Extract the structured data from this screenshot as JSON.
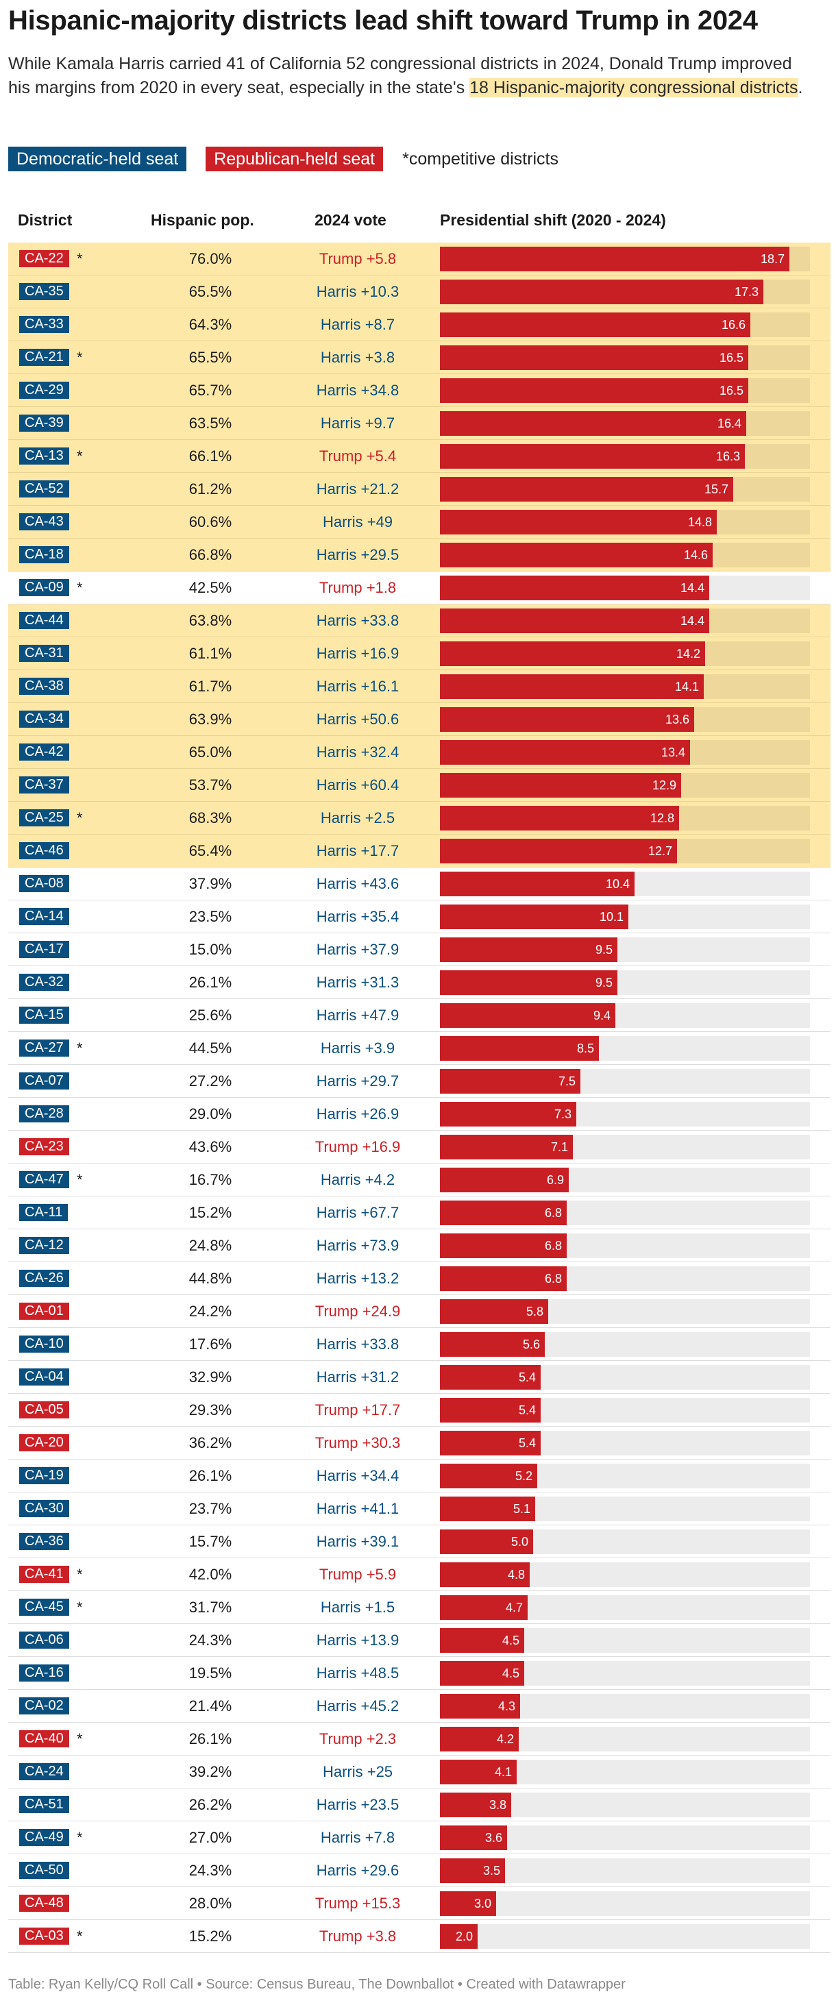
{
  "header": {
    "title": "Hispanic-majority districts lead shift toward Trump in 2024",
    "subtitle_before": "While Kamala Harris carried 41 of California 52 congressional districts in 2024, Donald Trump improved his margins from 2020 in every seat, especially in the state's ",
    "subtitle_highlight": "18 Hispanic-majority congressional districts",
    "subtitle_after": "."
  },
  "legend": {
    "dem_label": "Democratic-held seat",
    "rep_label": "Republican-held seat",
    "note": "*competitive districts"
  },
  "columns": {
    "district": "District",
    "hispanic": "Hispanic pop.",
    "vote": "2024 vote",
    "shift": "Presidential shift (2020 - 2024)"
  },
  "colors": {
    "dem": "#0b4f7f",
    "rep": "#cc2027",
    "bar": "#c81f25",
    "highlight": "#fde8a8",
    "track": "#ececec"
  },
  "chart_data": {
    "type": "table",
    "title": "Hispanic-majority districts lead shift toward Trump in 2024",
    "xlim": [
      0,
      19.8
    ],
    "rows": [
      {
        "district": "CA-22",
        "party": "rep",
        "competitive": true,
        "hispanic": "76.0%",
        "vote": "Trump +5.8",
        "vote_side": "rep",
        "shift": 18.7,
        "hisp_majority": true
      },
      {
        "district": "CA-35",
        "party": "dem",
        "competitive": false,
        "hispanic": "65.5%",
        "vote": "Harris +10.3",
        "vote_side": "dem",
        "shift": 17.3,
        "hisp_majority": true
      },
      {
        "district": "CA-33",
        "party": "dem",
        "competitive": false,
        "hispanic": "64.3%",
        "vote": "Harris +8.7",
        "vote_side": "dem",
        "shift": 16.6,
        "hisp_majority": true
      },
      {
        "district": "CA-21",
        "party": "dem",
        "competitive": true,
        "hispanic": "65.5%",
        "vote": "Harris +3.8",
        "vote_side": "dem",
        "shift": 16.5,
        "hisp_majority": true
      },
      {
        "district": "CA-29",
        "party": "dem",
        "competitive": false,
        "hispanic": "65.7%",
        "vote": "Harris +34.8",
        "vote_side": "dem",
        "shift": 16.5,
        "hisp_majority": true
      },
      {
        "district": "CA-39",
        "party": "dem",
        "competitive": false,
        "hispanic": "63.5%",
        "vote": "Harris +9.7",
        "vote_side": "dem",
        "shift": 16.4,
        "hisp_majority": true
      },
      {
        "district": "CA-13",
        "party": "dem",
        "competitive": true,
        "hispanic": "66.1%",
        "vote": "Trump +5.4",
        "vote_side": "rep",
        "shift": 16.3,
        "hisp_majority": true
      },
      {
        "district": "CA-52",
        "party": "dem",
        "competitive": false,
        "hispanic": "61.2%",
        "vote": "Harris +21.2",
        "vote_side": "dem",
        "shift": 15.7,
        "hisp_majority": true
      },
      {
        "district": "CA-43",
        "party": "dem",
        "competitive": false,
        "hispanic": "60.6%",
        "vote": "Harris +49",
        "vote_side": "dem",
        "shift": 14.8,
        "hisp_majority": true
      },
      {
        "district": "CA-18",
        "party": "dem",
        "competitive": false,
        "hispanic": "66.8%",
        "vote": "Harris +29.5",
        "vote_side": "dem",
        "shift": 14.6,
        "hisp_majority": true
      },
      {
        "district": "CA-09",
        "party": "dem",
        "competitive": true,
        "hispanic": "42.5%",
        "vote": "Trump +1.8",
        "vote_side": "rep",
        "shift": 14.4,
        "hisp_majority": false
      },
      {
        "district": "CA-44",
        "party": "dem",
        "competitive": false,
        "hispanic": "63.8%",
        "vote": "Harris +33.8",
        "vote_side": "dem",
        "shift": 14.4,
        "hisp_majority": true
      },
      {
        "district": "CA-31",
        "party": "dem",
        "competitive": false,
        "hispanic": "61.1%",
        "vote": "Harris +16.9",
        "vote_side": "dem",
        "shift": 14.2,
        "hisp_majority": true
      },
      {
        "district": "CA-38",
        "party": "dem",
        "competitive": false,
        "hispanic": "61.7%",
        "vote": "Harris +16.1",
        "vote_side": "dem",
        "shift": 14.1,
        "hisp_majority": true
      },
      {
        "district": "CA-34",
        "party": "dem",
        "competitive": false,
        "hispanic": "63.9%",
        "vote": "Harris +50.6",
        "vote_side": "dem",
        "shift": 13.6,
        "hisp_majority": true
      },
      {
        "district": "CA-42",
        "party": "dem",
        "competitive": false,
        "hispanic": "65.0%",
        "vote": "Harris +32.4",
        "vote_side": "dem",
        "shift": 13.4,
        "hisp_majority": true
      },
      {
        "district": "CA-37",
        "party": "dem",
        "competitive": false,
        "hispanic": "53.7%",
        "vote": "Harris +60.4",
        "vote_side": "dem",
        "shift": 12.9,
        "hisp_majority": true
      },
      {
        "district": "CA-25",
        "party": "dem",
        "competitive": true,
        "hispanic": "68.3%",
        "vote": "Harris +2.5",
        "vote_side": "dem",
        "shift": 12.8,
        "hisp_majority": true
      },
      {
        "district": "CA-46",
        "party": "dem",
        "competitive": false,
        "hispanic": "65.4%",
        "vote": "Harris +17.7",
        "vote_side": "dem",
        "shift": 12.7,
        "hisp_majority": true
      },
      {
        "district": "CA-08",
        "party": "dem",
        "competitive": false,
        "hispanic": "37.9%",
        "vote": "Harris +43.6",
        "vote_side": "dem",
        "shift": 10.4,
        "hisp_majority": false
      },
      {
        "district": "CA-14",
        "party": "dem",
        "competitive": false,
        "hispanic": "23.5%",
        "vote": "Harris +35.4",
        "vote_side": "dem",
        "shift": 10.1,
        "hisp_majority": false
      },
      {
        "district": "CA-17",
        "party": "dem",
        "competitive": false,
        "hispanic": "15.0%",
        "vote": "Harris +37.9",
        "vote_side": "dem",
        "shift": 9.5,
        "hisp_majority": false
      },
      {
        "district": "CA-32",
        "party": "dem",
        "competitive": false,
        "hispanic": "26.1%",
        "vote": "Harris +31.3",
        "vote_side": "dem",
        "shift": 9.5,
        "hisp_majority": false
      },
      {
        "district": "CA-15",
        "party": "dem",
        "competitive": false,
        "hispanic": "25.6%",
        "vote": "Harris +47.9",
        "vote_side": "dem",
        "shift": 9.4,
        "hisp_majority": false
      },
      {
        "district": "CA-27",
        "party": "dem",
        "competitive": true,
        "hispanic": "44.5%",
        "vote": "Harris +3.9",
        "vote_side": "dem",
        "shift": 8.5,
        "hisp_majority": false
      },
      {
        "district": "CA-07",
        "party": "dem",
        "competitive": false,
        "hispanic": "27.2%",
        "vote": "Harris +29.7",
        "vote_side": "dem",
        "shift": 7.5,
        "hisp_majority": false
      },
      {
        "district": "CA-28",
        "party": "dem",
        "competitive": false,
        "hispanic": "29.0%",
        "vote": "Harris +26.9",
        "vote_side": "dem",
        "shift": 7.3,
        "hisp_majority": false
      },
      {
        "district": "CA-23",
        "party": "rep",
        "competitive": false,
        "hispanic": "43.6%",
        "vote": "Trump +16.9",
        "vote_side": "rep",
        "shift": 7.1,
        "hisp_majority": false
      },
      {
        "district": "CA-47",
        "party": "dem",
        "competitive": true,
        "hispanic": "16.7%",
        "vote": "Harris +4.2",
        "vote_side": "dem",
        "shift": 6.9,
        "hisp_majority": false
      },
      {
        "district": "CA-11",
        "party": "dem",
        "competitive": false,
        "hispanic": "15.2%",
        "vote": "Harris +67.7",
        "vote_side": "dem",
        "shift": 6.8,
        "hisp_majority": false
      },
      {
        "district": "CA-12",
        "party": "dem",
        "competitive": false,
        "hispanic": "24.8%",
        "vote": "Harris +73.9",
        "vote_side": "dem",
        "shift": 6.8,
        "hisp_majority": false
      },
      {
        "district": "CA-26",
        "party": "dem",
        "competitive": false,
        "hispanic": "44.8%",
        "vote": "Harris +13.2",
        "vote_side": "dem",
        "shift": 6.8,
        "hisp_majority": false
      },
      {
        "district": "CA-01",
        "party": "rep",
        "competitive": false,
        "hispanic": "24.2%",
        "vote": "Trump +24.9",
        "vote_side": "rep",
        "shift": 5.8,
        "hisp_majority": false
      },
      {
        "district": "CA-10",
        "party": "dem",
        "competitive": false,
        "hispanic": "17.6%",
        "vote": "Harris +33.8",
        "vote_side": "dem",
        "shift": 5.6,
        "hisp_majority": false
      },
      {
        "district": "CA-04",
        "party": "dem",
        "competitive": false,
        "hispanic": "32.9%",
        "vote": "Harris +31.2",
        "vote_side": "dem",
        "shift": 5.4,
        "hisp_majority": false
      },
      {
        "district": "CA-05",
        "party": "rep",
        "competitive": false,
        "hispanic": "29.3%",
        "vote": "Trump +17.7",
        "vote_side": "rep",
        "shift": 5.4,
        "hisp_majority": false
      },
      {
        "district": "CA-20",
        "party": "rep",
        "competitive": false,
        "hispanic": "36.2%",
        "vote": "Trump +30.3",
        "vote_side": "rep",
        "shift": 5.4,
        "hisp_majority": false
      },
      {
        "district": "CA-19",
        "party": "dem",
        "competitive": false,
        "hispanic": "26.1%",
        "vote": "Harris +34.4",
        "vote_side": "dem",
        "shift": 5.2,
        "hisp_majority": false
      },
      {
        "district": "CA-30",
        "party": "dem",
        "competitive": false,
        "hispanic": "23.7%",
        "vote": "Harris +41.1",
        "vote_side": "dem",
        "shift": 5.1,
        "hisp_majority": false
      },
      {
        "district": "CA-36",
        "party": "dem",
        "competitive": false,
        "hispanic": "15.7%",
        "vote": "Harris +39.1",
        "vote_side": "dem",
        "shift": 5.0,
        "hisp_majority": false
      },
      {
        "district": "CA-41",
        "party": "rep",
        "competitive": true,
        "hispanic": "42.0%",
        "vote": "Trump +5.9",
        "vote_side": "rep",
        "shift": 4.8,
        "hisp_majority": false
      },
      {
        "district": "CA-45",
        "party": "dem",
        "competitive": true,
        "hispanic": "31.7%",
        "vote": "Harris +1.5",
        "vote_side": "dem",
        "shift": 4.7,
        "hisp_majority": false
      },
      {
        "district": "CA-06",
        "party": "dem",
        "competitive": false,
        "hispanic": "24.3%",
        "vote": "Harris +13.9",
        "vote_side": "dem",
        "shift": 4.5,
        "hisp_majority": false
      },
      {
        "district": "CA-16",
        "party": "dem",
        "competitive": false,
        "hispanic": "19.5%",
        "vote": "Harris +48.5",
        "vote_side": "dem",
        "shift": 4.5,
        "hisp_majority": false
      },
      {
        "district": "CA-02",
        "party": "dem",
        "competitive": false,
        "hispanic": "21.4%",
        "vote": "Harris +45.2",
        "vote_side": "dem",
        "shift": 4.3,
        "hisp_majority": false
      },
      {
        "district": "CA-40",
        "party": "rep",
        "competitive": true,
        "hispanic": "26.1%",
        "vote": "Trump +2.3",
        "vote_side": "rep",
        "shift": 4.2,
        "hisp_majority": false
      },
      {
        "district": "CA-24",
        "party": "dem",
        "competitive": false,
        "hispanic": "39.2%",
        "vote": "Harris +25",
        "vote_side": "dem",
        "shift": 4.1,
        "hisp_majority": false
      },
      {
        "district": "CA-51",
        "party": "dem",
        "competitive": false,
        "hispanic": "26.2%",
        "vote": "Harris +23.5",
        "vote_side": "dem",
        "shift": 3.8,
        "hisp_majority": false
      },
      {
        "district": "CA-49",
        "party": "dem",
        "competitive": true,
        "hispanic": "27.0%",
        "vote": "Harris +7.8",
        "vote_side": "dem",
        "shift": 3.6,
        "hisp_majority": false
      },
      {
        "district": "CA-50",
        "party": "dem",
        "competitive": false,
        "hispanic": "24.3%",
        "vote": "Harris +29.6",
        "vote_side": "dem",
        "shift": 3.5,
        "hisp_majority": false
      },
      {
        "district": "CA-48",
        "party": "rep",
        "competitive": false,
        "hispanic": "28.0%",
        "vote": "Trump +15.3",
        "vote_side": "rep",
        "shift": 3.0,
        "hisp_majority": false
      },
      {
        "district": "CA-03",
        "party": "rep",
        "competitive": true,
        "hispanic": "15.2%",
        "vote": "Trump +3.8",
        "vote_side": "rep",
        "shift": 2.0,
        "hisp_majority": false
      }
    ]
  },
  "footer": {
    "text": "Table: Ryan Kelly/CQ Roll Call • Source: Census Bureau, The Downballot • Created with Datawrapper"
  }
}
